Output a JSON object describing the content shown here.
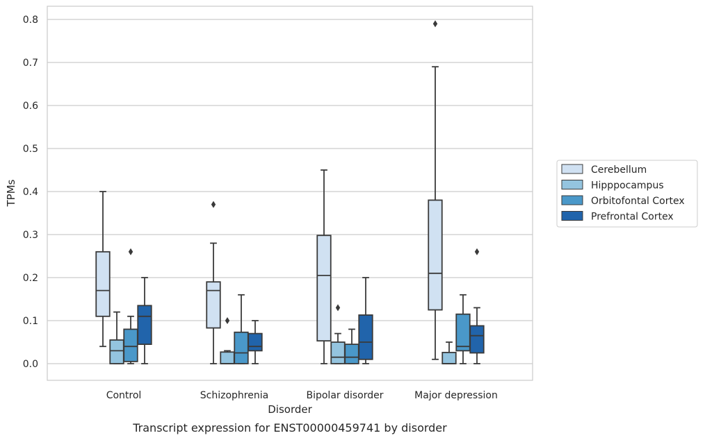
{
  "chart_data": {
    "type": "box",
    "caption": "Transcript expression for ENST00000459741 by disorder",
    "xlabel": "Disorder",
    "ylabel": "TPMs",
    "ylim": [
      -0.04,
      0.83
    ],
    "yticks": [
      "0.0",
      "0.1",
      "0.2",
      "0.3",
      "0.4",
      "0.5",
      "0.6",
      "0.7",
      "0.8"
    ],
    "grid": "horizontal",
    "legend_position": "right",
    "categories": [
      "Control",
      "Schizophrenia",
      "Bipolar disorder",
      "Major depression"
    ],
    "series": [
      {
        "name": "Cerebellum",
        "color": "#d0e1f2",
        "boxes": [
          {
            "whislo": 0.04,
            "q1": 0.11,
            "med": 0.17,
            "q3": 0.26,
            "whishi": 0.4,
            "fliers": []
          },
          {
            "whislo": 0.0,
            "q1": 0.083,
            "med": 0.17,
            "q3": 0.19,
            "whishi": 0.28,
            "fliers": [
              0.37
            ]
          },
          {
            "whislo": 0.0,
            "q1": 0.053,
            "med": 0.205,
            "q3": 0.298,
            "whishi": 0.45,
            "fliers": []
          },
          {
            "whislo": 0.01,
            "q1": 0.125,
            "med": 0.21,
            "q3": 0.38,
            "whishi": 0.69,
            "fliers": [
              0.79
            ]
          }
        ]
      },
      {
        "name": "Hipppocampus",
        "color": "#94c4df",
        "boxes": [
          {
            "whislo": 0.0,
            "q1": 0.0,
            "med": 0.03,
            "q3": 0.055,
            "whishi": 0.12,
            "fliers": []
          },
          {
            "whislo": 0.0,
            "q1": 0.0,
            "med": 0.0,
            "q3": 0.027,
            "whishi": 0.03,
            "fliers": [
              0.1
            ]
          },
          {
            "whislo": 0.0,
            "q1": 0.0,
            "med": 0.015,
            "q3": 0.05,
            "whishi": 0.07,
            "fliers": [
              0.13
            ]
          },
          {
            "whislo": 0.0,
            "q1": 0.0,
            "med": 0.0,
            "q3": 0.026,
            "whishi": 0.05,
            "fliers": []
          }
        ]
      },
      {
        "name": "Orbitofontal Cortex",
        "color": "#4a98c9",
        "boxes": [
          {
            "whislo": 0.0,
            "q1": 0.005,
            "med": 0.04,
            "q3": 0.08,
            "whishi": 0.11,
            "fliers": [
              0.26
            ]
          },
          {
            "whislo": 0.0,
            "q1": 0.0,
            "med": 0.025,
            "q3": 0.073,
            "whishi": 0.16,
            "fliers": []
          },
          {
            "whislo": 0.0,
            "q1": 0.0,
            "med": 0.015,
            "q3": 0.045,
            "whishi": 0.08,
            "fliers": []
          },
          {
            "whislo": 0.0,
            "q1": 0.03,
            "med": 0.04,
            "q3": 0.115,
            "whishi": 0.16,
            "fliers": []
          }
        ]
      },
      {
        "name": "Prefrontal Cortex",
        "color": "#2164ab",
        "boxes": [
          {
            "whislo": 0.0,
            "q1": 0.045,
            "med": 0.11,
            "q3": 0.135,
            "whishi": 0.2,
            "fliers": []
          },
          {
            "whislo": 0.0,
            "q1": 0.03,
            "med": 0.04,
            "q3": 0.07,
            "whishi": 0.1,
            "fliers": []
          },
          {
            "whislo": 0.0,
            "q1": 0.01,
            "med": 0.05,
            "q3": 0.113,
            "whishi": 0.2,
            "fliers": []
          },
          {
            "whislo": 0.0,
            "q1": 0.025,
            "med": 0.065,
            "q3": 0.088,
            "whishi": 0.13,
            "fliers": [
              0.26
            ]
          }
        ]
      }
    ]
  }
}
